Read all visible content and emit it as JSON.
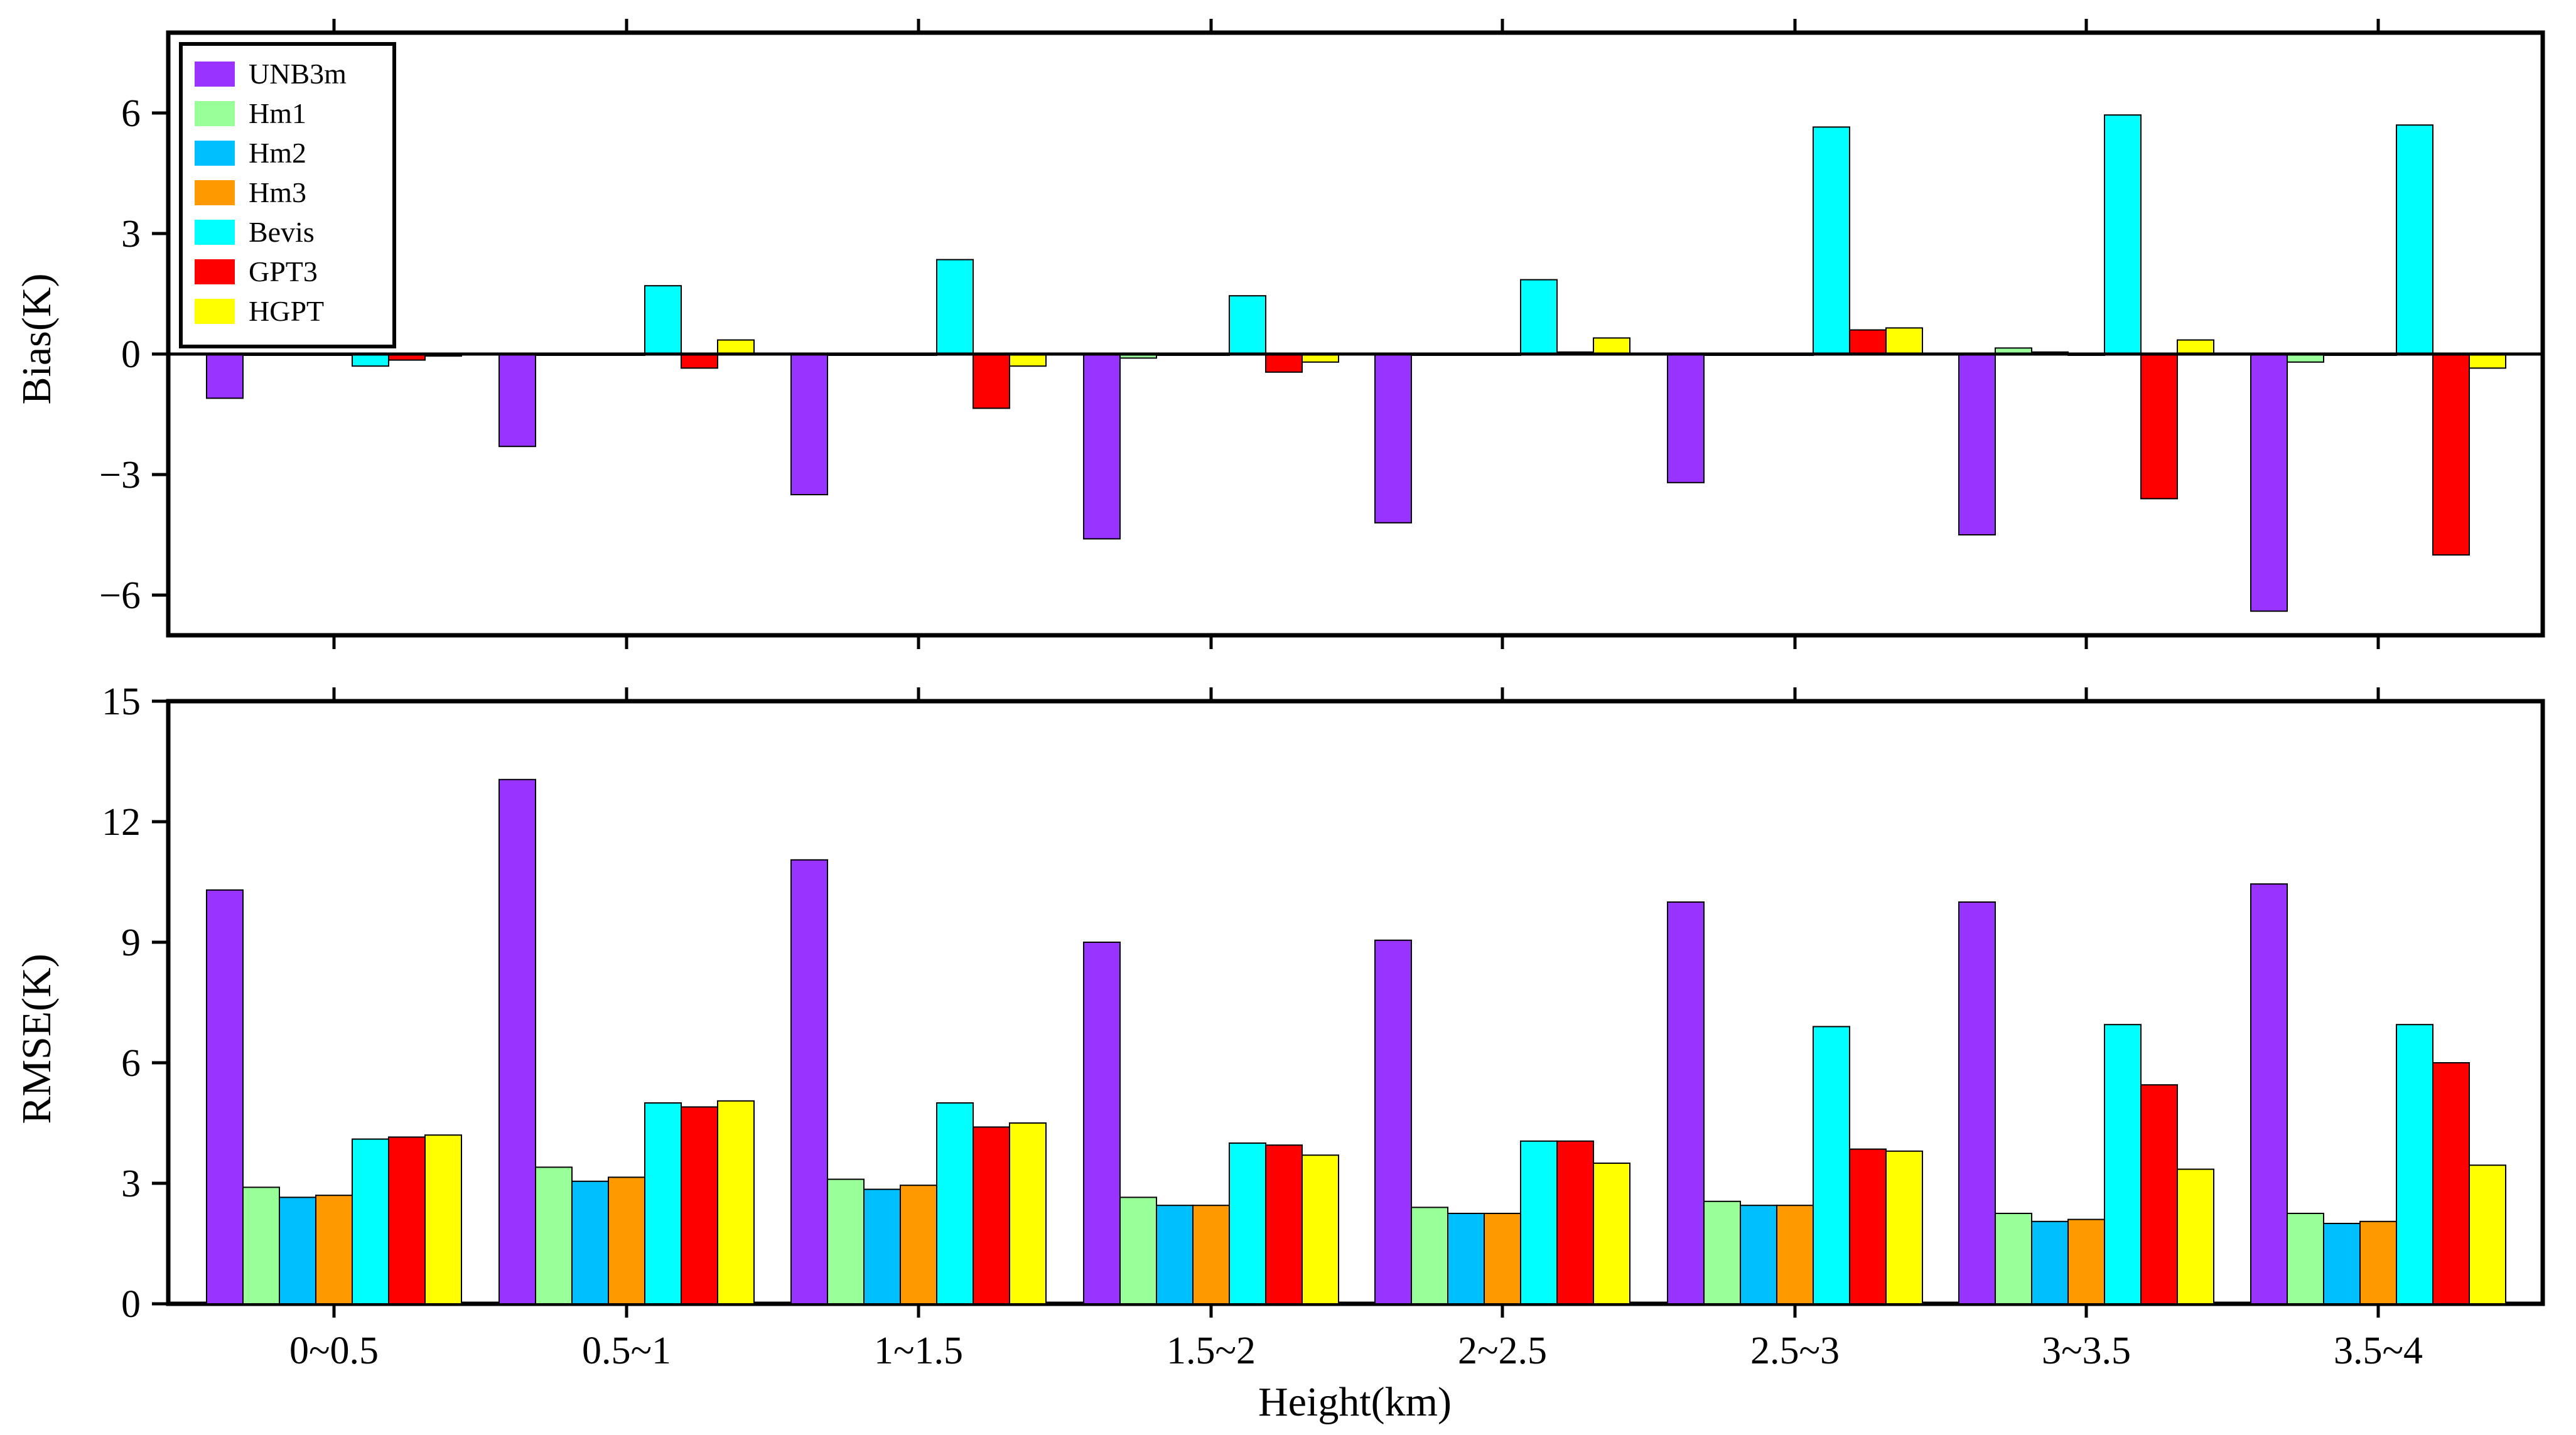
{
  "chart_data": [
    {
      "type": "bar",
      "name": "bias",
      "title": "",
      "xlabel": "",
      "ylabel": "Bias(K)",
      "ylim": [
        -7,
        8
      ],
      "yticks": [
        -6,
        -3,
        0,
        3,
        6
      ],
      "ytick_labels": [
        "−6",
        "−3",
        "0",
        "3",
        "6"
      ],
      "categories": [
        "0~0.5",
        "0.5~1",
        "1~1.5",
        "1.5~2",
        "2~2.5",
        "2.5~3",
        "3~3.5",
        "3.5~4"
      ],
      "series": [
        {
          "name": "UNB3m",
          "color": "#9933ff",
          "values": [
            -1.1,
            -2.3,
            -3.5,
            -4.6,
            -4.2,
            -3.2,
            -4.5,
            -6.4
          ]
        },
        {
          "name": "Hm1",
          "color": "#99ff99",
          "values": [
            0.0,
            0.0,
            0.0,
            -0.1,
            0.0,
            0.0,
            0.15,
            -0.2
          ]
        },
        {
          "name": "Hm2",
          "color": "#00bfff",
          "values": [
            0.0,
            0.0,
            0.0,
            0.0,
            0.0,
            0.0,
            0.05,
            0.0
          ]
        },
        {
          "name": "Hm3",
          "color": "#ff9900",
          "values": [
            0.0,
            0.0,
            0.0,
            0.0,
            0.0,
            0.0,
            0.0,
            0.0
          ]
        },
        {
          "name": "Bevis",
          "color": "#00ffff",
          "values": [
            -0.3,
            1.7,
            2.35,
            1.45,
            1.85,
            5.65,
            5.95,
            5.7
          ]
        },
        {
          "name": "GPT3",
          "color": "#ff0000",
          "values": [
            -0.15,
            -0.35,
            -1.35,
            -0.45,
            0.05,
            0.6,
            -3.6,
            -5.0
          ]
        },
        {
          "name": "HGPT",
          "color": "#ffff00",
          "values": [
            -0.05,
            0.35,
            -0.3,
            -0.2,
            0.4,
            0.65,
            0.35,
            -0.35
          ]
        }
      ],
      "grid": false,
      "legend_position": "top-left"
    },
    {
      "type": "bar",
      "name": "rmse",
      "title": "",
      "xlabel": "Height(km)",
      "ylabel": "RMSE(K)",
      "ylim": [
        0,
        15
      ],
      "yticks": [
        0,
        3,
        6,
        9,
        12,
        15
      ],
      "ytick_labels": [
        "0",
        "3",
        "6",
        "9",
        "12",
        "15"
      ],
      "categories": [
        "0~0.5",
        "0.5~1",
        "1~1.5",
        "1.5~2",
        "2~2.5",
        "2.5~3",
        "3~3.5",
        "3.5~4"
      ],
      "series": [
        {
          "name": "UNB3m",
          "color": "#9933ff",
          "values": [
            10.3,
            13.05,
            11.05,
            9.0,
            9.05,
            10.0,
            10.0,
            10.45
          ]
        },
        {
          "name": "Hm1",
          "color": "#99ff99",
          "values": [
            2.9,
            3.4,
            3.1,
            2.65,
            2.4,
            2.55,
            2.25,
            2.25
          ]
        },
        {
          "name": "Hm2",
          "color": "#00bfff",
          "values": [
            2.65,
            3.05,
            2.85,
            2.45,
            2.25,
            2.45,
            2.05,
            2.0
          ]
        },
        {
          "name": "Hm3",
          "color": "#ff9900",
          "values": [
            2.7,
            3.15,
            2.95,
            2.45,
            2.25,
            2.45,
            2.1,
            2.05
          ]
        },
        {
          "name": "Bevis",
          "color": "#00ffff",
          "values": [
            4.1,
            5.0,
            5.0,
            4.0,
            4.05,
            6.9,
            6.95,
            6.95
          ]
        },
        {
          "name": "GPT3",
          "color": "#ff0000",
          "values": [
            4.15,
            4.9,
            4.4,
            3.95,
            4.05,
            3.85,
            5.45,
            6.0
          ]
        },
        {
          "name": "HGPT",
          "color": "#ffff00",
          "values": [
            4.2,
            5.05,
            4.5,
            3.7,
            3.5,
            3.8,
            3.35,
            3.45
          ]
        }
      ],
      "grid": false,
      "legend_position": "none"
    }
  ],
  "legend": {
    "entries": [
      {
        "name": "UNB3m",
        "color": "#9933ff"
      },
      {
        "name": "Hm1",
        "color": "#99ff99"
      },
      {
        "name": "Hm2",
        "color": "#00bfff"
      },
      {
        "name": "Hm3",
        "color": "#ff9900"
      },
      {
        "name": "Bevis",
        "color": "#00ffff"
      },
      {
        "name": "GPT3",
        "color": "#ff0000"
      },
      {
        "name": "HGPT",
        "color": "#ffff00"
      }
    ]
  }
}
